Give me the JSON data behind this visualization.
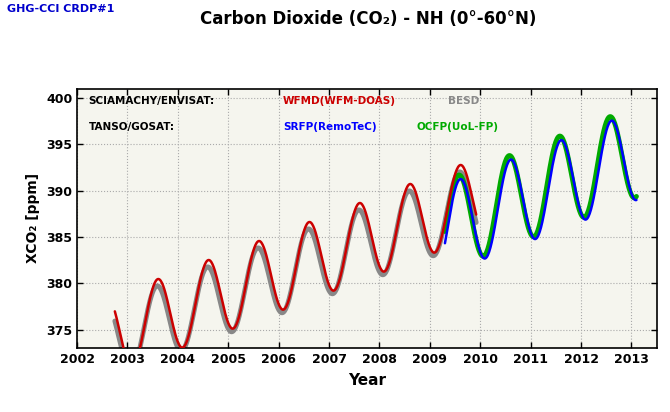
{
  "title": "Carbon Dioxide (CO₂) - NH (0°-60°N)",
  "subtitle": "GHG-CCI CRDP#1",
  "xlabel": "Year",
  "ylabel": "XCO₂ [ppm]",
  "ylim": [
    373,
    401
  ],
  "yticks": [
    375,
    380,
    385,
    390,
    395,
    400
  ],
  "xlim": [
    2002.0,
    2013.5
  ],
  "xticks": [
    2002,
    2003,
    2004,
    2005,
    2006,
    2007,
    2008,
    2009,
    2010,
    2011,
    2012,
    2013
  ],
  "background_color": "#ffffff",
  "plot_bg_color": "#f5f5ee",
  "grid_color": "#aaaaaa",
  "title_color": "#000000",
  "subtitle_color": "#0000cc",
  "wfmd_color": "#cc0000",
  "besd_color": "#888888",
  "srfp_color": "#0000ff",
  "ocfp_color": "#00aa00",
  "sciamachy_start": 2002.75,
  "sciamachy_end": 2009.92,
  "tanso_start": 2009.3,
  "tanso_end": 2013.1,
  "wfmd_base": 374.5,
  "wfmd_trend": 2.05,
  "wfmd_amp": 4.2,
  "wfmd_phase": 0.35,
  "besd_base": 374.0,
  "besd_trend": 2.05,
  "besd_amp": 4.0,
  "besd_phase": 0.33,
  "srfp_base": 385.8,
  "srfp_trend": 2.1,
  "srfp_amp": 4.8,
  "srfp_phase": 0.35,
  "ocfp_base": 386.2,
  "ocfp_trend": 2.1,
  "ocfp_amp": 4.9,
  "ocfp_phase": 0.32,
  "lw_thin": 1.8,
  "lw_thick": 3.5
}
